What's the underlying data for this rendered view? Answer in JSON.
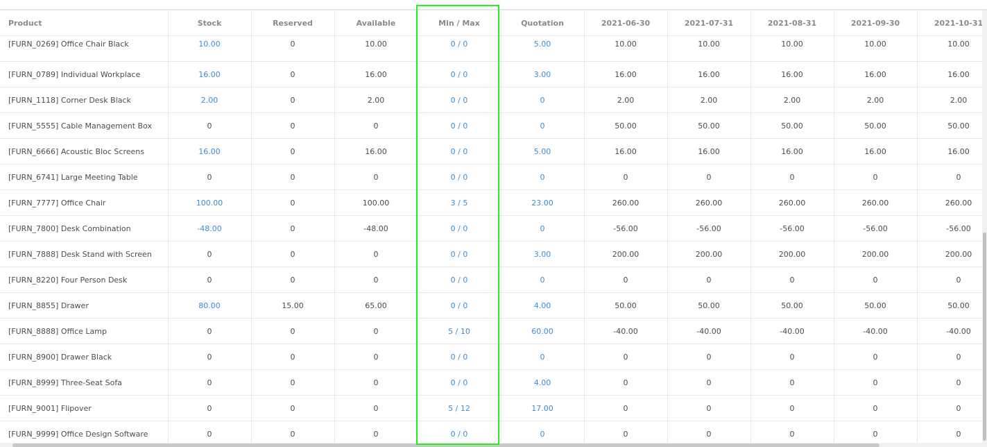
{
  "columns": [
    "Product",
    "Stock",
    "Reserved",
    "Available",
    "Min / Max",
    "Quotation",
    "2021-06-30",
    "2021-07-31",
    "2021-08-31",
    "2021-09-30",
    "2021-10-31"
  ],
  "rows": [
    [
      "[FURN_0269] Office Chair Black",
      "10.00",
      "0",
      "10.00",
      "0 / 0",
      "5.00",
      "10.00",
      "10.00",
      "10.00",
      "10.00",
      "10.00"
    ],
    [
      "[FURN_0789] Individual Workplace",
      "16.00",
      "0",
      "16.00",
      "0 / 0",
      "3.00",
      "16.00",
      "16.00",
      "16.00",
      "16.00",
      "16.00"
    ],
    [
      "[FURN_1118] Corner Desk Black",
      "2.00",
      "0",
      "2.00",
      "0 / 0",
      "0",
      "2.00",
      "2.00",
      "2.00",
      "2.00",
      "2.00"
    ],
    [
      "[FURN_5555] Cable Management Box",
      "0",
      "0",
      "0",
      "0 / 0",
      "0",
      "50.00",
      "50.00",
      "50.00",
      "50.00",
      "50.00"
    ],
    [
      "[FURN_6666] Acoustic Bloc Screens",
      "16.00",
      "0",
      "16.00",
      "0 / 0",
      "5.00",
      "16.00",
      "16.00",
      "16.00",
      "16.00",
      "16.00"
    ],
    [
      "[FURN_6741] Large Meeting Table",
      "0",
      "0",
      "0",
      "0 / 0",
      "0",
      "0",
      "0",
      "0",
      "0",
      "0"
    ],
    [
      "[FURN_7777] Office Chair",
      "100.00",
      "0",
      "100.00",
      "3 / 5",
      "23.00",
      "260.00",
      "260.00",
      "260.00",
      "260.00",
      "260.00"
    ],
    [
      "[FURN_7800] Desk Combination",
      "-48.00",
      "0",
      "-48.00",
      "0 / 0",
      "0",
      "-56.00",
      "-56.00",
      "-56.00",
      "-56.00",
      "-56.00"
    ],
    [
      "[FURN_7888] Desk Stand with Screen",
      "0",
      "0",
      "0",
      "0 / 0",
      "3.00",
      "200.00",
      "200.00",
      "200.00",
      "200.00",
      "200.00"
    ],
    [
      "[FURN_8220] Four Person Desk",
      "0",
      "0",
      "0",
      "0 / 0",
      "0",
      "0",
      "0",
      "0",
      "0",
      "0"
    ],
    [
      "[FURN_8855] Drawer",
      "80.00",
      "15.00",
      "65.00",
      "0 / 0",
      "4.00",
      "50.00",
      "50.00",
      "50.00",
      "50.00",
      "50.00"
    ],
    [
      "[FURN_8888] Office Lamp",
      "0",
      "0",
      "0",
      "5 / 10",
      "60.00",
      "-40.00",
      "-40.00",
      "-40.00",
      "-40.00",
      "-40.00"
    ],
    [
      "[FURN_8900] Drawer Black",
      "0",
      "0",
      "0",
      "0 / 0",
      "0",
      "0",
      "0",
      "0",
      "0",
      "0"
    ],
    [
      "[FURN_8999] Three-Seat Sofa",
      "0",
      "0",
      "0",
      "0 / 0",
      "4.00",
      "0",
      "0",
      "0",
      "0",
      "0"
    ],
    [
      "[FURN_9001] Flipover",
      "0",
      "0",
      "0",
      "5 / 12",
      "17.00",
      "0",
      "0",
      "0",
      "0",
      "0"
    ],
    [
      "[FURN_9999] Office Design Software",
      "0",
      "0",
      "0",
      "0 / 0",
      "0",
      "0",
      "0",
      "0",
      "0",
      "0"
    ]
  ],
  "colors": {
    "link": "#3a8dd6",
    "text": "#4c4c4c",
    "header": "#8a8a8a",
    "highlight": "#22ee22"
  }
}
